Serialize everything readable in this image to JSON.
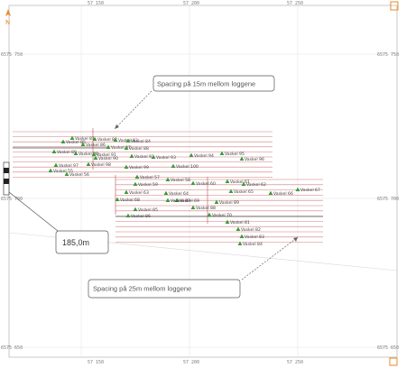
{
  "north_arrow": {
    "letter": "N",
    "icon": "north-arrow-icon",
    "color": "#e8882a"
  },
  "corner_icon_color": "#e8882a",
  "coordinate_ticks": {
    "top": [
      "57 150",
      "57 200",
      "57 250"
    ],
    "bottom": [
      "57 150",
      "57 200",
      "57 250"
    ],
    "left": [
      "6575 750",
      "6575 700",
      "6575 650"
    ],
    "right": [
      "6575 750",
      "6575 700",
      "6575 650"
    ]
  },
  "callouts": [
    {
      "text": "Spacing på 15m mellom loggene"
    },
    {
      "text": "Spacing på 25m mellom loggene"
    }
  ],
  "measurement": {
    "text": "185,0m"
  },
  "marker_label": "Vaskel",
  "marker_color": "#3a9a3a",
  "line_color": "#c0504d",
  "marker_ids": [
    "81",
    "82",
    "83",
    "84",
    "85",
    "86",
    "87",
    "88",
    "89",
    "90",
    "91",
    "92",
    "93",
    "94",
    "95",
    "96",
    "97",
    "98",
    "99",
    "100",
    "55",
    "56",
    "57",
    "58",
    "59",
    "60",
    "61",
    "62",
    "63",
    "64",
    "65",
    "66",
    "67",
    "68",
    "69",
    "70"
  ]
}
